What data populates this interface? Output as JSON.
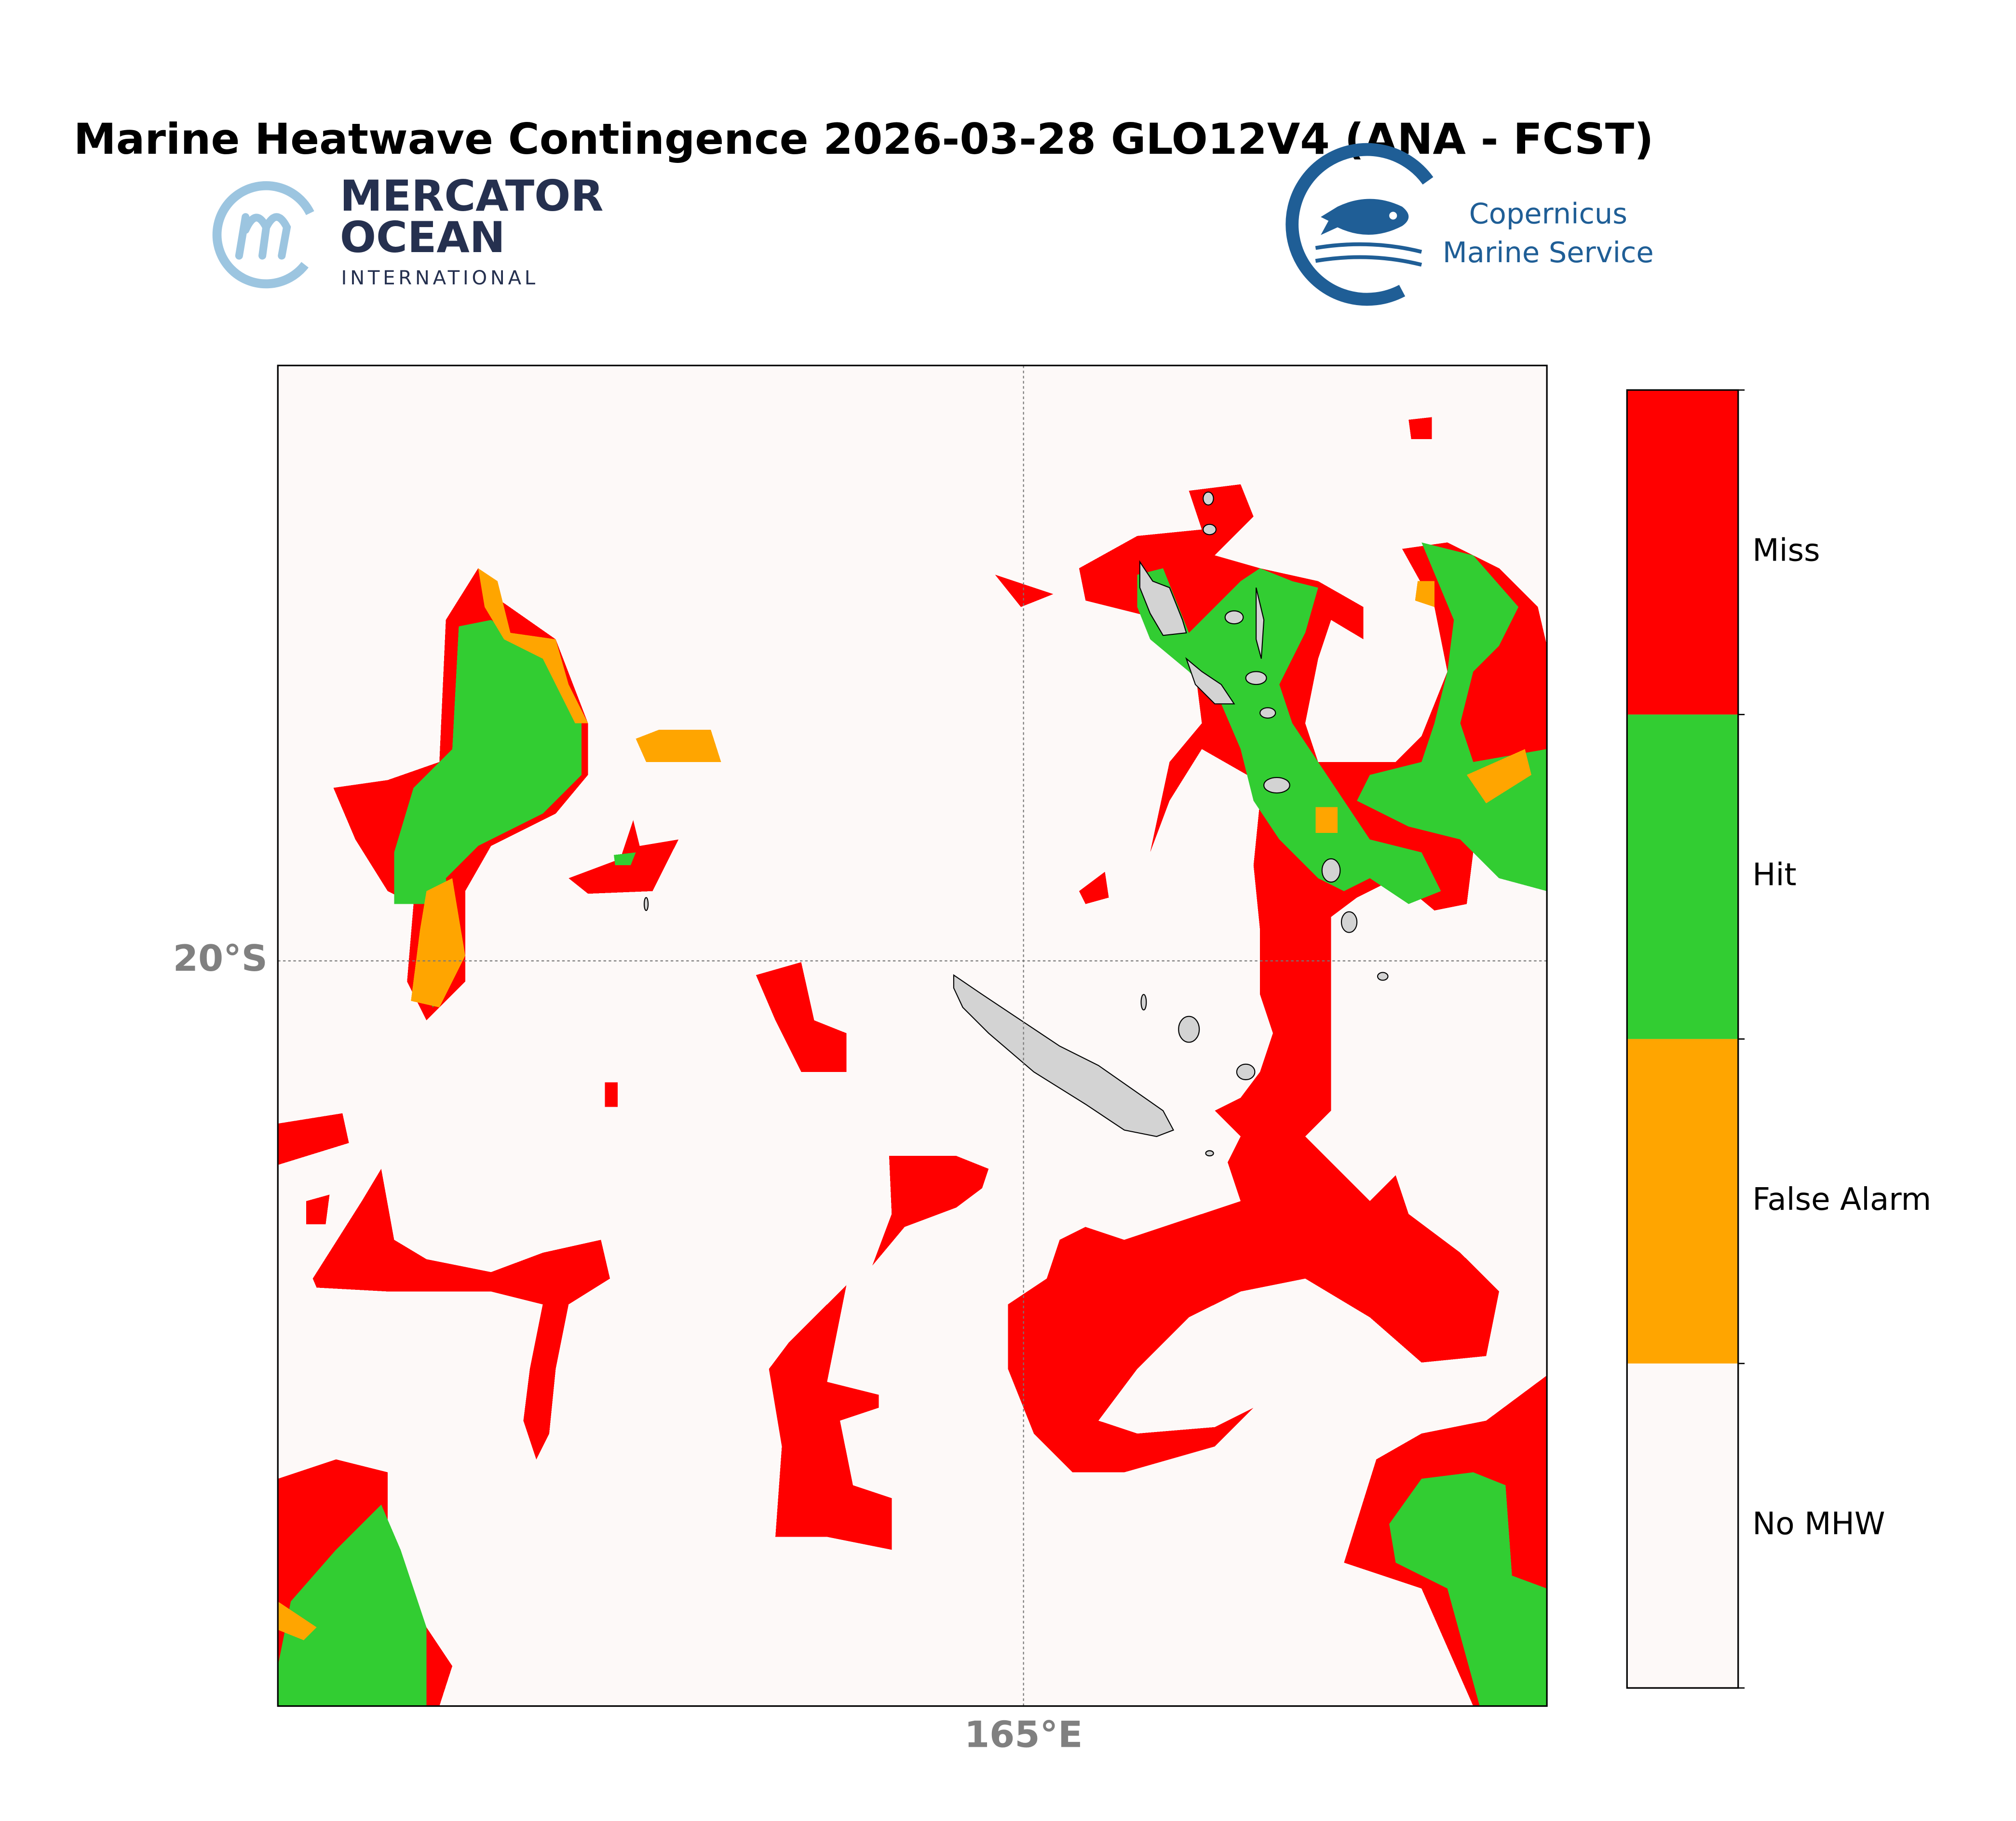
{
  "title": "Marine Heatwave Contingence 2026-03-28 GLO12V4 (ANA - FCST)",
  "logos": {
    "mercator": [
      "MERCATOR",
      "OCEAN",
      "INTERNATIONAL"
    ],
    "copernicus": [
      "Copernicus",
      "Marine Service"
    ]
  },
  "map": {
    "lat_label": "20°S",
    "lon_label": "165°E"
  },
  "legend": [
    {
      "name": "No MHW",
      "color": "#fdf9f8"
    },
    {
      "name": "False Alarm",
      "color": "#ffa500"
    },
    {
      "name": "Hit",
      "color": "#32cd32"
    },
    {
      "name": "Miss",
      "color": "#ff0000"
    }
  ]
}
